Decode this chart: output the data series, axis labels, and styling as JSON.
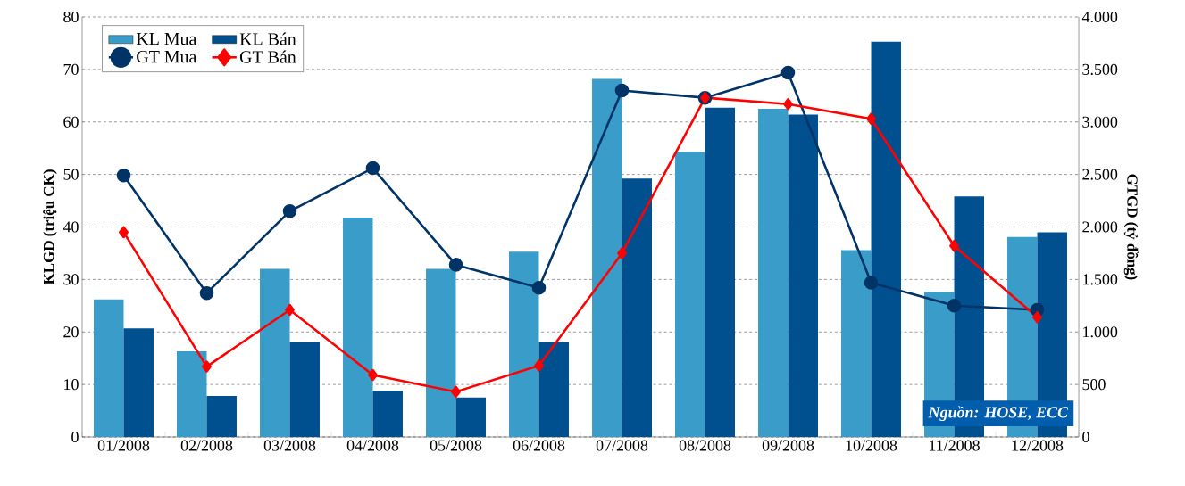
{
  "chart_data": {
    "type": "bar",
    "ylabel": "KLGD (triệu CK)",
    "y2label": "GTGD (tỷ đồng)",
    "categories": [
      "01/2008",
      "02/2008",
      "03/2008",
      "04/2008",
      "05/2008",
      "06/2008",
      "07/2008",
      "08/2008",
      "09/2008",
      "10/2008",
      "11/2008",
      "12/2008"
    ],
    "series": [
      {
        "name": "KL Mua",
        "color": "#3a9cc8",
        "values": [
          26.2,
          16.3,
          32,
          41.8,
          32,
          35.3,
          68.2,
          54.3,
          62.5,
          35.6,
          27.6,
          38.1
        ]
      },
      {
        "name": "KL Bán",
        "color": "#00508f",
        "values": [
          20.7,
          7.8,
          18,
          8.8,
          7.5,
          18,
          49.2,
          62.7,
          61.4,
          75.3,
          45.8,
          39
        ]
      },
      {
        "name": "GT Mua",
        "type": "line",
        "axis": "y2",
        "color": "#003366",
        "marker": "circle",
        "line_style": "solid",
        "values": [
          2490,
          1370,
          2150,
          2560,
          1640,
          1420,
          3300,
          3230,
          3470,
          1470,
          1250,
          1210
        ]
      },
      {
        "name": "GT Bán",
        "type": "line",
        "axis": "y2",
        "color": "#ff0000",
        "marker": "diamond",
        "line_style": "solid",
        "values": [
          1950,
          670,
          1210,
          590,
          430,
          680,
          1750,
          3230,
          3170,
          3030,
          1820,
          1140
        ]
      }
    ],
    "ylim": [
      0,
      80
    ],
    "yticks": [
      0,
      10,
      20,
      30,
      40,
      50,
      60,
      70,
      80
    ],
    "y2lim": [
      0,
      4000
    ],
    "y2ticks": [
      0,
      500,
      {
        "value": 1000,
        "label": "1.000"
      },
      {
        "value": 1500,
        "label": "1.500"
      },
      {
        "value": 2000,
        "label": "2.000"
      },
      {
        "value": 2500,
        "label": "2.500"
      },
      {
        "value": 3000,
        "label": "3.000"
      },
      {
        "value": 3500,
        "label": "3.500"
      },
      {
        "value": 4000,
        "label": "4.000"
      }
    ],
    "grid": "y",
    "legend": "top left",
    "annotations": [
      "*Nguồn: HOSE, ECC*"
    ]
  }
}
